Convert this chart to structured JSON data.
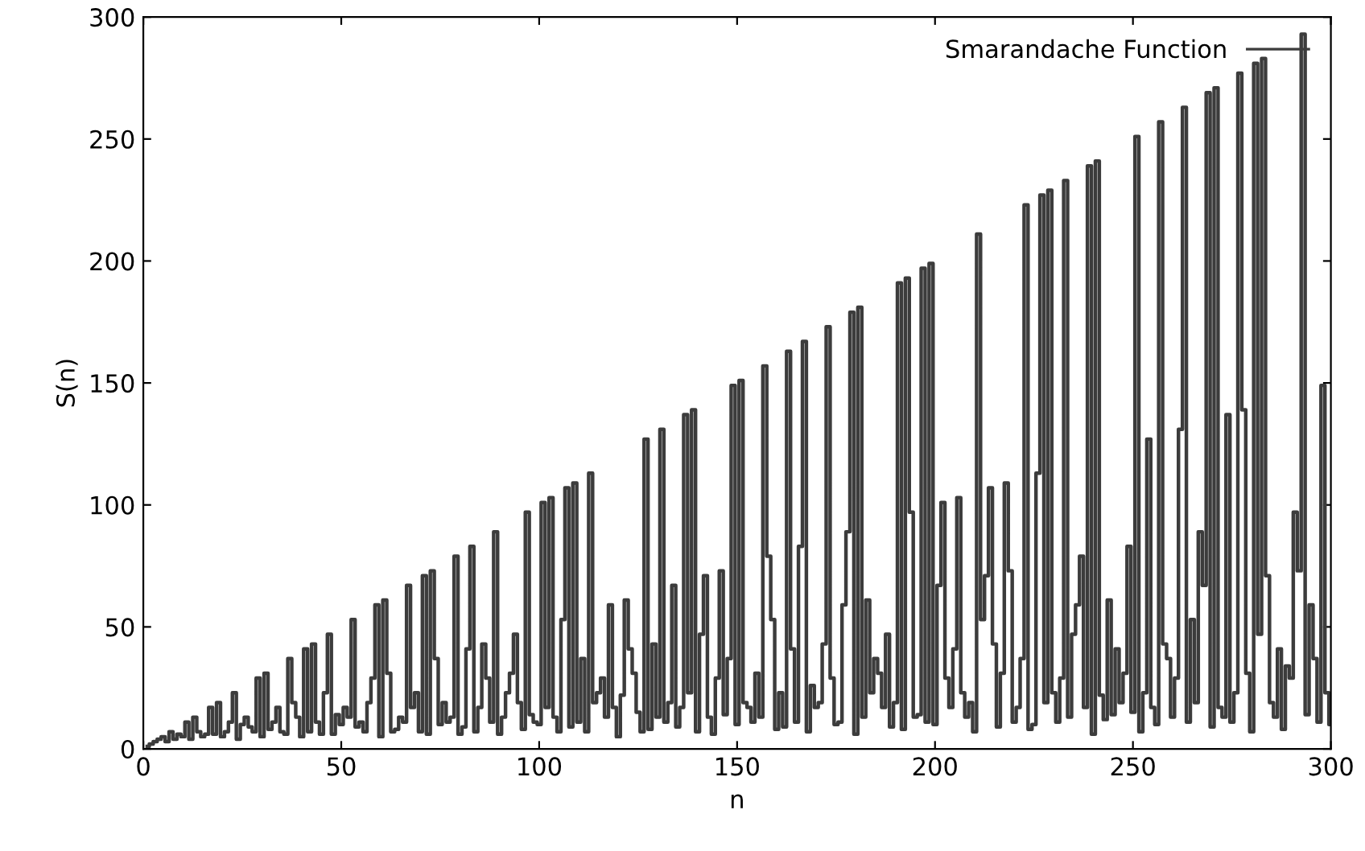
{
  "chart_data": {
    "type": "step",
    "xlabel": "n",
    "ylabel": "S(n)",
    "xlim": [
      0,
      300
    ],
    "ylim": [
      0,
      300
    ],
    "xticks": [
      0,
      50,
      100,
      150,
      200,
      250,
      300
    ],
    "yticks": [
      0,
      50,
      100,
      150,
      200,
      250,
      300
    ],
    "grid": false,
    "legend": "top right",
    "marker": "none",
    "line_style": "solid",
    "x": [
      1,
      2,
      3,
      4,
      5,
      6,
      7,
      8,
      9,
      10,
      11,
      12,
      13,
      14,
      15,
      16,
      17,
      18,
      19,
      20,
      21,
      22,
      23,
      24,
      25,
      26,
      27,
      28,
      29,
      30,
      31,
      32,
      33,
      34,
      35,
      36,
      37,
      38,
      39,
      40,
      41,
      42,
      43,
      44,
      45,
      46,
      47,
      48,
      49,
      50,
      51,
      52,
      53,
      54,
      55,
      56,
      57,
      58,
      59,
      60,
      61,
      62,
      63,
      64,
      65,
      66,
      67,
      68,
      69,
      70,
      71,
      72,
      73,
      74,
      75,
      76,
      77,
      78,
      79,
      80,
      81,
      82,
      83,
      84,
      85,
      86,
      87,
      88,
      89,
      90,
      91,
      92,
      93,
      94,
      95,
      96,
      97,
      98,
      99,
      100,
      101,
      102,
      103,
      104,
      105,
      106,
      107,
      108,
      109,
      110,
      111,
      112,
      113,
      114,
      115,
      116,
      117,
      118,
      119,
      120,
      121,
      122,
      123,
      124,
      125,
      126,
      127,
      128,
      129,
      130,
      131,
      132,
      133,
      134,
      135,
      136,
      137,
      138,
      139,
      140,
      141,
      142,
      143,
      144,
      145,
      146,
      147,
      148,
      149,
      150,
      151,
      152,
      153,
      154,
      155,
      156,
      157,
      158,
      159,
      160,
      161,
      162,
      163,
      164,
      165,
      166,
      167,
      168,
      169,
      170,
      171,
      172,
      173,
      174,
      175,
      176,
      177,
      178,
      179,
      180,
      181,
      182,
      183,
      184,
      185,
      186,
      187,
      188,
      189,
      190,
      191,
      192,
      193,
      194,
      195,
      196,
      197,
      198,
      199,
      200,
      201,
      202,
      203,
      204,
      205,
      206,
      207,
      208,
      209,
      210,
      211,
      212,
      213,
      214,
      215,
      216,
      217,
      218,
      219,
      220,
      221,
      222,
      223,
      224,
      225,
      226,
      227,
      228,
      229,
      230,
      231,
      232,
      233,
      234,
      235,
      236,
      237,
      238,
      239,
      240,
      241,
      242,
      243,
      244,
      245,
      246,
      247,
      248,
      249,
      250,
      251,
      252,
      253,
      254,
      255,
      256,
      257,
      258,
      259,
      260,
      261,
      262,
      263,
      264,
      265,
      266,
      267,
      268,
      269,
      270,
      271,
      272,
      273,
      274,
      275,
      276,
      277,
      278,
      279,
      280,
      281,
      282,
      283,
      284,
      285,
      286,
      287,
      288,
      289,
      290,
      291,
      292,
      293,
      294,
      295,
      296,
      297,
      298,
      299,
      300
    ],
    "series": [
      {
        "name": "Smarandache Function",
        "color": "#3c3c3c",
        "values": [
          1,
          2,
          3,
          4,
          5,
          3,
          7,
          4,
          6,
          5,
          11,
          4,
          13,
          7,
          5,
          6,
          17,
          6,
          19,
          5,
          7,
          11,
          23,
          4,
          10,
          13,
          9,
          7,
          29,
          5,
          31,
          8,
          11,
          17,
          7,
          6,
          37,
          19,
          13,
          5,
          41,
          7,
          43,
          11,
          6,
          23,
          47,
          6,
          14,
          10,
          17,
          13,
          53,
          9,
          11,
          7,
          19,
          29,
          59,
          5,
          61,
          31,
          7,
          8,
          13,
          11,
          67,
          17,
          23,
          7,
          71,
          6,
          73,
          37,
          10,
          19,
          11,
          13,
          79,
          6,
          9,
          41,
          83,
          7,
          17,
          43,
          29,
          11,
          89,
          6,
          13,
          23,
          31,
          47,
          19,
          8,
          97,
          14,
          11,
          10,
          101,
          17,
          103,
          13,
          7,
          53,
          107,
          9,
          109,
          11,
          37,
          7,
          113,
          19,
          23,
          29,
          13,
          59,
          17,
          5,
          22,
          61,
          41,
          31,
          15,
          7,
          127,
          8,
          43,
          13,
          131,
          11,
          19,
          67,
          9,
          17,
          137,
          23,
          139,
          7,
          47,
          71,
          13,
          6,
          29,
          73,
          14,
          37,
          149,
          10,
          151,
          19,
          17,
          11,
          31,
          13,
          157,
          79,
          53,
          8,
          23,
          9,
          163,
          41,
          11,
          83,
          167,
          7,
          26,
          17,
          19,
          43,
          173,
          29,
          10,
          11,
          59,
          89,
          179,
          6,
          181,
          13,
          61,
          23,
          37,
          31,
          17,
          47,
          9,
          19,
          191,
          8,
          193,
          97,
          13,
          14,
          197,
          11,
          199,
          10,
          67,
          101,
          29,
          17,
          41,
          103,
          23,
          13,
          19,
          7,
          211,
          53,
          71,
          107,
          43,
          9,
          31,
          109,
          73,
          11,
          17,
          37,
          223,
          8,
          10,
          113,
          227,
          19,
          229,
          23,
          11,
          29,
          233,
          13,
          47,
          59,
          79,
          17,
          239,
          6,
          241,
          22,
          12,
          61,
          14,
          41,
          19,
          31,
          83,
          15,
          251,
          7,
          23,
          127,
          17,
          10,
          257,
          43,
          37,
          13,
          29,
          131,
          263,
          11,
          53,
          19,
          89,
          67,
          269,
          9,
          271,
          17,
          13,
          137,
          11,
          23,
          277,
          139,
          31,
          7,
          281,
          47,
          283,
          71,
          19,
          13,
          41,
          8,
          34,
          29,
          97,
          73,
          293,
          14,
          59,
          37,
          11,
          149,
          23,
          10
        ]
      }
    ]
  }
}
